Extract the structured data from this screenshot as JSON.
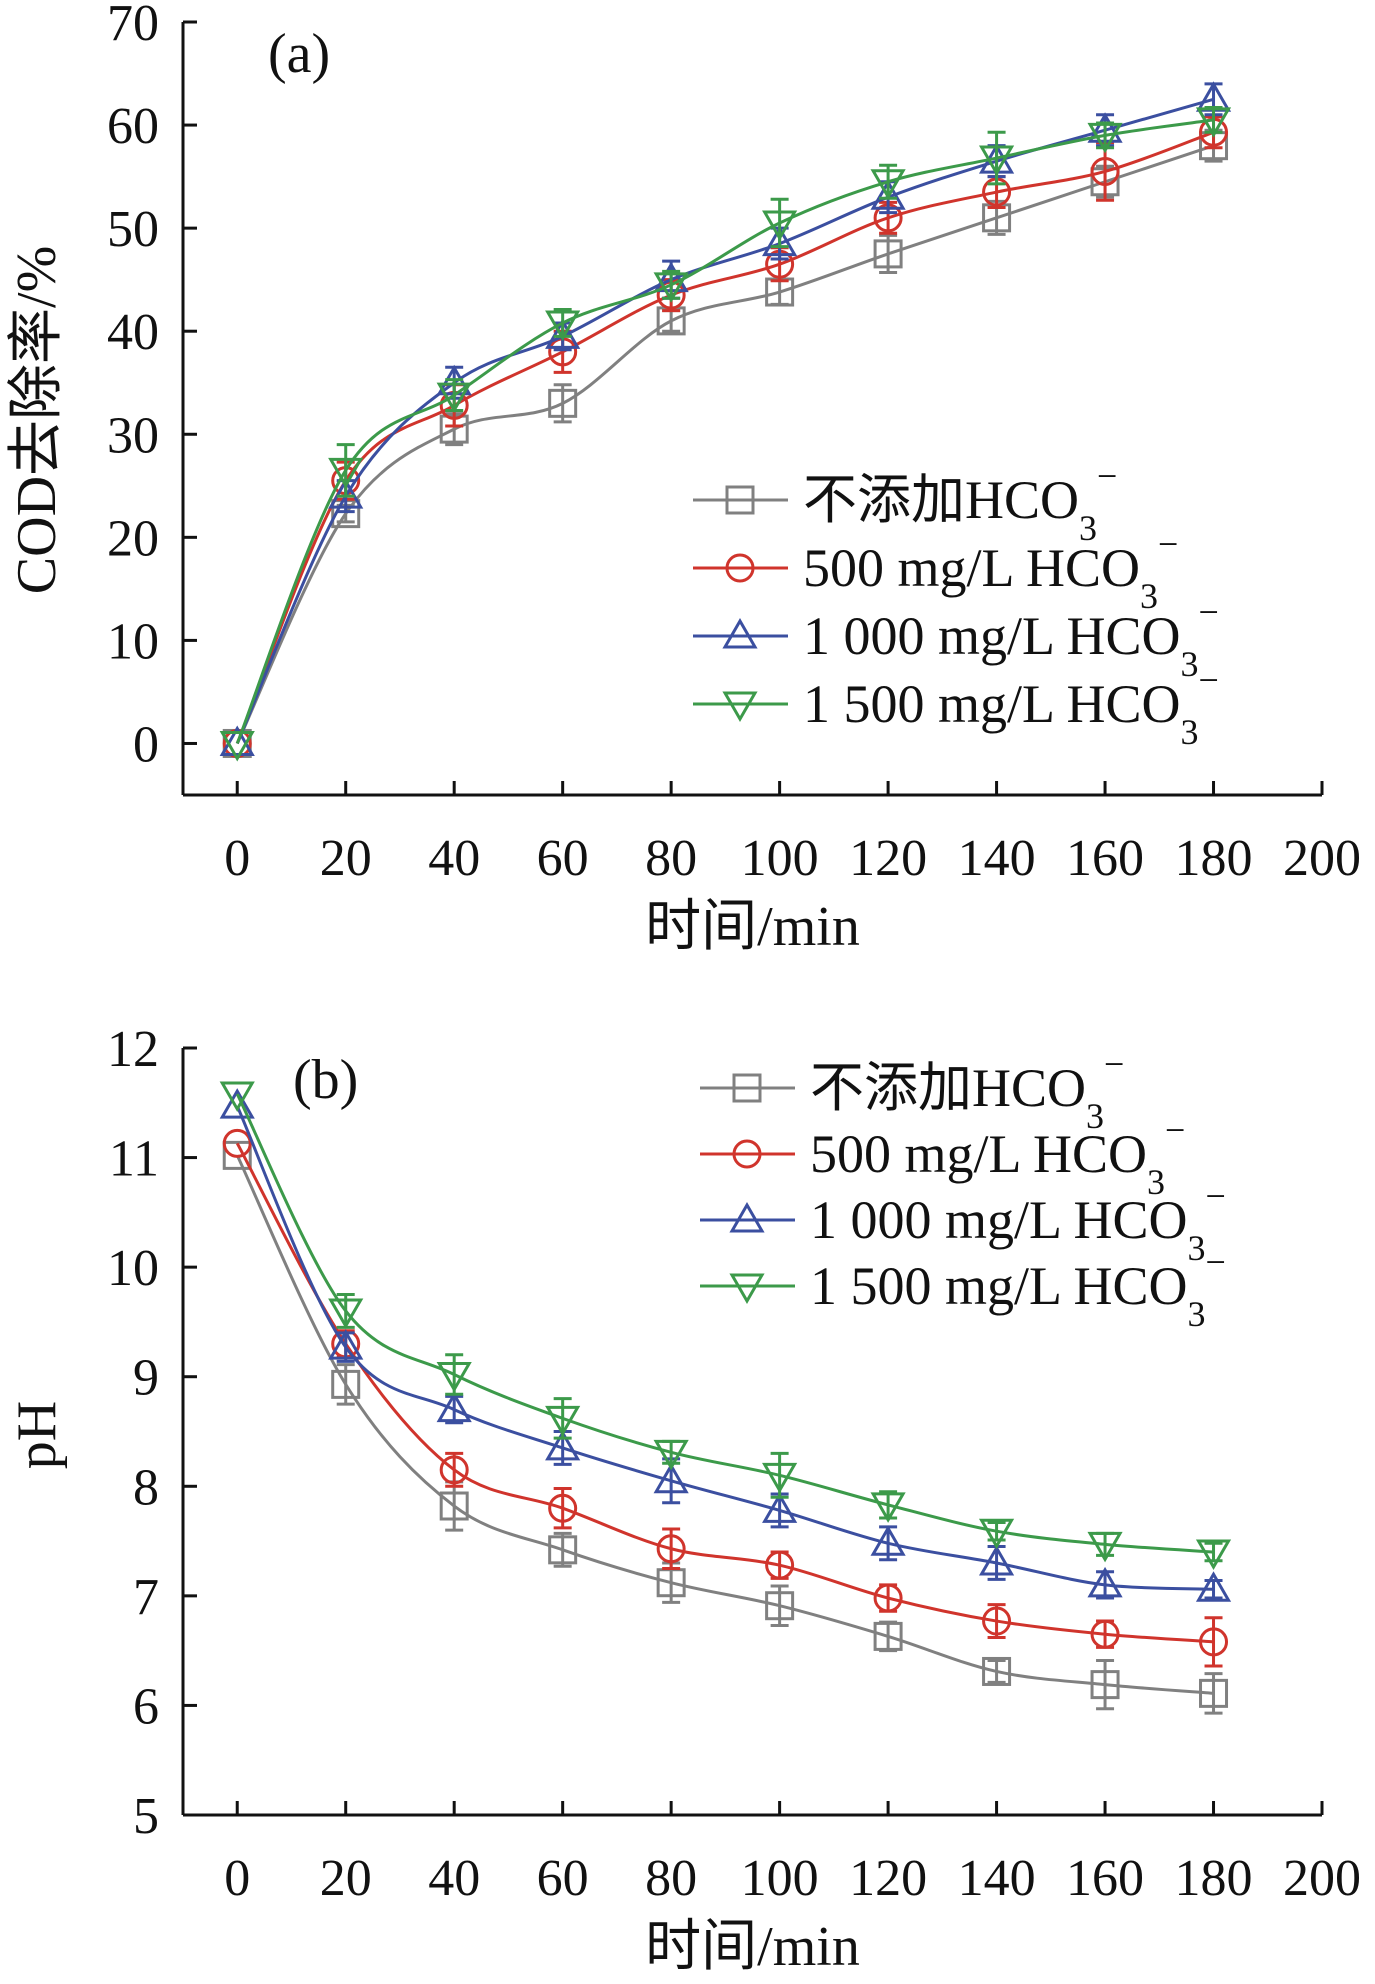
{
  "chart_data": [
    {
      "type": "line",
      "panel_label": "(a)",
      "xlabel": "时间/min",
      "ylabel": "COD去除率/%",
      "xlim": [
        -10,
        200
      ],
      "ylim": [
        -5,
        70
      ],
      "xticks": [
        0,
        20,
        40,
        60,
        80,
        100,
        120,
        140,
        160,
        180,
        200
      ],
      "yticks": [
        0,
        10,
        20,
        30,
        40,
        50,
        60,
        70
      ],
      "x": [
        0,
        20,
        40,
        60,
        80,
        100,
        120,
        140,
        160,
        180
      ],
      "legend_position": "right-middle",
      "series": [
        {
          "name": "不添加HCO",
          "sub": "3",
          "sup": "−",
          "color": "#808080",
          "marker": "square",
          "values": [
            0,
            22.3,
            30.5,
            33,
            41,
            43.8,
            47.5,
            51,
            54.5,
            58
          ],
          "errors": [
            0,
            0.8,
            1.5,
            1.8,
            1,
            1.2,
            1.8,
            1.6,
            1.5,
            1.5
          ]
        },
        {
          "name": "500 mg/L  HCO",
          "sub": "3",
          "sup": "−",
          "color": "#d0342c",
          "marker": "circle",
          "values": [
            0,
            25.5,
            32.8,
            38,
            43.5,
            46.5,
            51,
            53.5,
            55.5,
            59.3
          ],
          "errors": [
            0,
            1.8,
            2,
            2,
            1.5,
            1.6,
            1.5,
            1.5,
            2.8,
            1.5
          ]
        },
        {
          "name": "1 000 mg/L HCO",
          "sub": "3",
          "sup": "−",
          "color": "#3b4fa0",
          "marker": "triangle-up",
          "values": [
            0,
            24,
            35,
            39.5,
            45,
            48.5,
            53,
            56.5,
            59.5,
            62.5
          ],
          "errors": [
            0,
            1.5,
            1.5,
            1.3,
            1.8,
            1.5,
            1.5,
            1.5,
            1.5,
            1.5
          ]
        },
        {
          "name": "1 500 mg/L HCO",
          "sub": "3",
          "sup": "−",
          "color": "#3c9a4a",
          "marker": "triangle-down",
          "values": [
            0,
            26.5,
            33.8,
            40.8,
            44.5,
            50.5,
            54.5,
            56.8,
            59,
            60.5
          ],
          "errors": [
            0,
            2.5,
            1.5,
            1.3,
            1.3,
            2.3,
            1.6,
            2.5,
            1.2,
            1.2
          ]
        }
      ]
    },
    {
      "type": "line",
      "panel_label": "(b)",
      "xlabel": "时间/min",
      "ylabel": "pH",
      "xlim": [
        -10,
        200
      ],
      "ylim": [
        5,
        12
      ],
      "xticks": [
        0,
        20,
        40,
        60,
        80,
        100,
        120,
        140,
        160,
        180,
        200
      ],
      "yticks": [
        5,
        6,
        7,
        8,
        9,
        10,
        11,
        12
      ],
      "x": [
        0,
        20,
        40,
        60,
        80,
        100,
        120,
        140,
        160,
        180
      ],
      "legend_position": "top-right",
      "series": [
        {
          "name": "不添加HCO",
          "sub": "3",
          "sup": "−",
          "color": "#808080",
          "marker": "square",
          "values": [
            11.02,
            8.93,
            7.82,
            7.42,
            7.12,
            6.91,
            6.63,
            6.31,
            6.19,
            6.11
          ],
          "errors": [
            0,
            0.18,
            0.22,
            0.15,
            0.18,
            0.18,
            0.13,
            0.1,
            0.22,
            0.18
          ]
        },
        {
          "name": "500 mg/L  HCO",
          "sub": "3",
          "sup": "−",
          "color": "#d0342c",
          "marker": "circle",
          "values": [
            11.13,
            9.3,
            8.15,
            7.8,
            7.43,
            7.28,
            6.98,
            6.77,
            6.65,
            6.58
          ],
          "errors": [
            0,
            0.12,
            0.15,
            0.18,
            0.18,
            0.12,
            0.12,
            0.15,
            0.12,
            0.22
          ]
        },
        {
          "name": "1 000 mg/L HCO",
          "sub": "3",
          "sup": "−",
          "color": "#3b4fa0",
          "marker": "triangle-up",
          "values": [
            11.47,
            9.27,
            8.7,
            8.35,
            8.05,
            7.78,
            7.48,
            7.3,
            7.1,
            7.06
          ],
          "errors": [
            0,
            0.13,
            0.12,
            0.15,
            0.2,
            0.15,
            0.15,
            0.15,
            0.12,
            0.08
          ]
        },
        {
          "name": "1 500 mg/L HCO",
          "sub": "3",
          "sup": "−",
          "color": "#3c9a4a",
          "marker": "triangle-down",
          "values": [
            11.58,
            9.6,
            9.02,
            8.62,
            8.31,
            8.1,
            7.83,
            7.59,
            7.47,
            7.4
          ],
          "errors": [
            0,
            0.15,
            0.18,
            0.18,
            0.1,
            0.2,
            0.12,
            0.08,
            0.1,
            0.08
          ]
        }
      ]
    }
  ]
}
